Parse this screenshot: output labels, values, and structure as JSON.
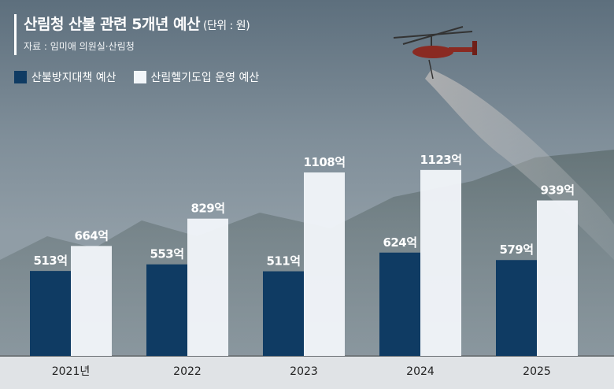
{
  "header": {
    "title": "산림청 산불 관련 5개년 예산",
    "unit": "(단위 : 원)",
    "source": "자료 : 임미애 의원실·산림청"
  },
  "colors": {
    "series_1": "#0f3b63",
    "series_2": "#f2f6fa",
    "label_on_dark": "#ffffff",
    "label_on_light": "#ffffff"
  },
  "chart_data": {
    "type": "bar",
    "categories": [
      "2021년",
      "2022",
      "2023",
      "2024",
      "2025"
    ],
    "series": [
      {
        "name": "산불방지대책 예산",
        "values": [
          513,
          553,
          511,
          624,
          579
        ],
        "labels": [
          "513억",
          "553억",
          "511억",
          "624억",
          "579억"
        ]
      },
      {
        "name": "산림헬기도입 운영 예산",
        "values": [
          664,
          829,
          1108,
          1123,
          939
        ],
        "labels": [
          "664억",
          "829억",
          "1108억",
          "1123억",
          "939억"
        ]
      }
    ],
    "legend": "top-left",
    "grid": false
  }
}
